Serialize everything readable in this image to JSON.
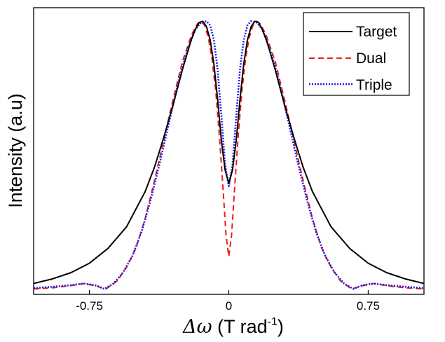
{
  "chart_data": {
    "type": "line",
    "title": "",
    "xlabel_symbol": "Δω",
    "xlabel_main": " (T rad",
    "xlabel_sup": "-1",
    "xlabel_end": ")",
    "ylabel": "Intensity (a.u)",
    "xlim": [
      -1.05,
      1.05
    ],
    "ylim": [
      -0.02,
      1.04
    ],
    "xticks": [
      {
        "value": -0.75,
        "label": "-0.75"
      },
      {
        "value": 0,
        "label": "0"
      },
      {
        "value": 0.75,
        "label": "0.75"
      }
    ],
    "grid": false,
    "legend_position": "top-right",
    "series": [
      {
        "name": "Target",
        "color": "#000000",
        "style": "solid",
        "points": [
          [
            -1.05,
            0.02
          ],
          [
            -0.95,
            0.037
          ],
          [
            -0.85,
            0.06
          ],
          [
            -0.75,
            0.095
          ],
          [
            -0.65,
            0.15
          ],
          [
            -0.55,
            0.23
          ],
          [
            -0.45,
            0.36
          ],
          [
            -0.4,
            0.45
          ],
          [
            -0.35,
            0.56
          ],
          [
            -0.3,
            0.68
          ],
          [
            -0.25,
            0.81
          ],
          [
            -0.22,
            0.88
          ],
          [
            -0.2,
            0.925
          ],
          [
            -0.18,
            0.96
          ],
          [
            -0.16,
            0.985
          ],
          [
            -0.14,
            0.99
          ],
          [
            -0.12,
            0.97
          ],
          [
            -0.1,
            0.92
          ],
          [
            -0.08,
            0.83
          ],
          [
            -0.06,
            0.7
          ],
          [
            -0.04,
            0.55
          ],
          [
            -0.02,
            0.44
          ],
          [
            0.0,
            0.39
          ],
          [
            0.02,
            0.44
          ],
          [
            0.04,
            0.55
          ],
          [
            0.06,
            0.7
          ],
          [
            0.08,
            0.83
          ],
          [
            0.1,
            0.92
          ],
          [
            0.12,
            0.97
          ],
          [
            0.14,
            0.99
          ],
          [
            0.16,
            0.985
          ],
          [
            0.18,
            0.96
          ],
          [
            0.2,
            0.925
          ],
          [
            0.22,
            0.88
          ],
          [
            0.25,
            0.81
          ],
          [
            0.3,
            0.68
          ],
          [
            0.35,
            0.56
          ],
          [
            0.4,
            0.45
          ],
          [
            0.45,
            0.36
          ],
          [
            0.55,
            0.23
          ],
          [
            0.65,
            0.15
          ],
          [
            0.75,
            0.095
          ],
          [
            0.85,
            0.06
          ],
          [
            0.95,
            0.037
          ],
          [
            1.05,
            0.02
          ]
        ]
      },
      {
        "name": "Dual",
        "color": "#ee1c1c",
        "style": "dashed",
        "points": [
          [
            -1.05,
            0.0
          ],
          [
            -0.95,
            0.004
          ],
          [
            -0.85,
            0.012
          ],
          [
            -0.78,
            0.02
          ],
          [
            -0.72,
            0.012
          ],
          [
            -0.66,
            0.0
          ],
          [
            -0.6,
            0.03
          ],
          [
            -0.55,
            0.08
          ],
          [
            -0.5,
            0.15
          ],
          [
            -0.45,
            0.26
          ],
          [
            -0.4,
            0.4
          ],
          [
            -0.35,
            0.55
          ],
          [
            -0.3,
            0.7
          ],
          [
            -0.25,
            0.84
          ],
          [
            -0.2,
            0.94
          ],
          [
            -0.17,
            0.98
          ],
          [
            -0.15,
            0.99
          ],
          [
            -0.13,
            0.975
          ],
          [
            -0.11,
            0.93
          ],
          [
            -0.09,
            0.85
          ],
          [
            -0.07,
            0.73
          ],
          [
            -0.05,
            0.56
          ],
          [
            -0.03,
            0.36
          ],
          [
            -0.015,
            0.2
          ],
          [
            0.0,
            0.12
          ],
          [
            0.015,
            0.2
          ],
          [
            0.03,
            0.36
          ],
          [
            0.05,
            0.56
          ],
          [
            0.07,
            0.73
          ],
          [
            0.09,
            0.85
          ],
          [
            0.11,
            0.93
          ],
          [
            0.13,
            0.975
          ],
          [
            0.15,
            0.99
          ],
          [
            0.17,
            0.98
          ],
          [
            0.2,
            0.94
          ],
          [
            0.25,
            0.84
          ],
          [
            0.3,
            0.7
          ],
          [
            0.35,
            0.55
          ],
          [
            0.4,
            0.4
          ],
          [
            0.45,
            0.26
          ],
          [
            0.5,
            0.15
          ],
          [
            0.55,
            0.08
          ],
          [
            0.6,
            0.03
          ],
          [
            0.66,
            0.0
          ],
          [
            0.72,
            0.012
          ],
          [
            0.78,
            0.02
          ],
          [
            0.85,
            0.012
          ],
          [
            0.95,
            0.004
          ],
          [
            1.05,
            0.0
          ]
        ]
      },
      {
        "name": "Triple",
        "color": "#1c1cee",
        "style": "dotted",
        "points": [
          [
            -1.05,
            0.003
          ],
          [
            -0.95,
            0.008
          ],
          [
            -0.85,
            0.014
          ],
          [
            -0.78,
            0.02
          ],
          [
            -0.72,
            0.014
          ],
          [
            -0.67,
            0.0
          ],
          [
            -0.62,
            0.02
          ],
          [
            -0.57,
            0.06
          ],
          [
            -0.52,
            0.12
          ],
          [
            -0.47,
            0.21
          ],
          [
            -0.42,
            0.33
          ],
          [
            -0.37,
            0.47
          ],
          [
            -0.32,
            0.62
          ],
          [
            -0.27,
            0.77
          ],
          [
            -0.22,
            0.89
          ],
          [
            -0.18,
            0.96
          ],
          [
            -0.15,
            0.985
          ],
          [
            -0.12,
            0.99
          ],
          [
            -0.1,
            0.975
          ],
          [
            -0.08,
            0.92
          ],
          [
            -0.06,
            0.81
          ],
          [
            -0.04,
            0.64
          ],
          [
            -0.02,
            0.46
          ],
          [
            0.0,
            0.38
          ],
          [
            0.02,
            0.46
          ],
          [
            0.04,
            0.64
          ],
          [
            0.06,
            0.81
          ],
          [
            0.08,
            0.92
          ],
          [
            0.1,
            0.975
          ],
          [
            0.12,
            0.99
          ],
          [
            0.15,
            0.985
          ],
          [
            0.18,
            0.96
          ],
          [
            0.22,
            0.89
          ],
          [
            0.27,
            0.77
          ],
          [
            0.32,
            0.62
          ],
          [
            0.37,
            0.47
          ],
          [
            0.42,
            0.33
          ],
          [
            0.47,
            0.21
          ],
          [
            0.52,
            0.12
          ],
          [
            0.57,
            0.06
          ],
          [
            0.62,
            0.02
          ],
          [
            0.67,
            0.0
          ],
          [
            0.72,
            0.014
          ],
          [
            0.78,
            0.02
          ],
          [
            0.85,
            0.014
          ],
          [
            0.95,
            0.008
          ],
          [
            1.05,
            0.003
          ]
        ]
      }
    ]
  }
}
